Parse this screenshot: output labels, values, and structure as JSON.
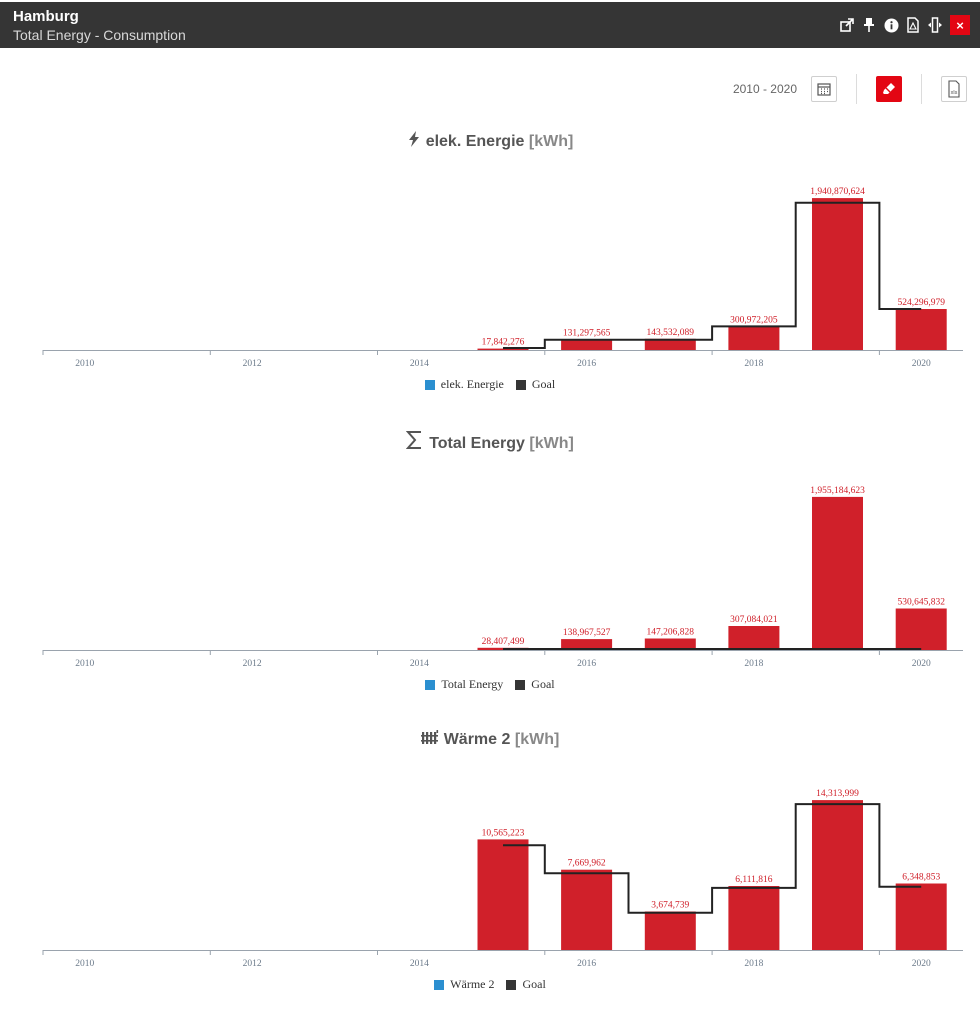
{
  "window": {
    "title": "Hamburg",
    "subtitle": "Total Energy - Consumption"
  },
  "header_icons": [
    "share-icon",
    "pin-icon",
    "info-icon",
    "pdf-icon",
    "resize-icon"
  ],
  "close_label": "×",
  "toolbar": {
    "date_range": "2010 - 2020",
    "export_label": "xls"
  },
  "colors": {
    "bar": "#d0202a",
    "goal": "#222222",
    "series_legend": "#2b8fd0",
    "titlebar": "#353535",
    "accent": "#e30613"
  },
  "charts": [
    {
      "id": "elek",
      "icon": "lightning-icon",
      "title": "elek. Energie",
      "unit": "[kWh]",
      "legend": [
        "elek. Energie",
        "Goal"
      ],
      "chart_data": {
        "type": "bar",
        "categories": [
          "2010",
          "2011",
          "2012",
          "2013",
          "2014",
          "2015",
          "2016",
          "2017",
          "2018",
          "2019",
          "2020"
        ],
        "x_tick_labels": [
          "2010",
          "2012",
          "2014",
          "2016",
          "2018",
          "2020"
        ],
        "series": [
          {
            "name": "elek. Energie",
            "values": [
              0,
              0,
              0,
              0,
              0,
              17842276,
              131297565,
              143532089,
              300972205,
              1940870624,
              524296979
            ]
          },
          {
            "name": "Goal",
            "type": "step",
            "values": [
              null,
              null,
              null,
              null,
              null,
              25000000,
              131297565,
              131297565,
              300972205,
              1880000000,
              524296979
            ]
          }
        ],
        "labels": [
          "",
          "",
          "",
          "",
          "",
          "17,842,276",
          "131,297,565",
          "143,532,089",
          "300,972,205",
          "1,940,870,624",
          "524,296,979"
        ],
        "ylim": [
          0,
          1980000000
        ]
      }
    },
    {
      "id": "total",
      "icon": "sigma-icon",
      "title": "Total Energy",
      "unit": "[kWh]",
      "legend": [
        "Total Energy",
        "Goal"
      ],
      "chart_data": {
        "type": "bar",
        "categories": [
          "2010",
          "2011",
          "2012",
          "2013",
          "2014",
          "2015",
          "2016",
          "2017",
          "2018",
          "2019",
          "2020"
        ],
        "x_tick_labels": [
          "2010",
          "2012",
          "2014",
          "2016",
          "2018",
          "2020"
        ],
        "series": [
          {
            "name": "Total Energy",
            "values": [
              0,
              0,
              0,
              0,
              0,
              28407499,
              138967527,
              147206828,
              307084021,
              1955184623,
              530645832
            ]
          },
          {
            "name": "Goal",
            "type": "step",
            "values": [
              null,
              null,
              null,
              null,
              null,
              0,
              0,
              0,
              0,
              13000000,
              0
            ]
          }
        ],
        "labels": [
          "",
          "",
          "",
          "",
          "",
          "28,407,499",
          "138,967,527",
          "147,206,828",
          "307,084,021",
          "1,955,184,623",
          "530,645,832"
        ],
        "ylim": [
          0,
          1980000000
        ]
      }
    },
    {
      "id": "waerme",
      "icon": "radiator-icon",
      "title": "Wärme 2",
      "unit": "[kWh]",
      "legend": [
        "Wärme 2",
        "Goal"
      ],
      "chart_data": {
        "type": "bar",
        "categories": [
          "2010",
          "2011",
          "2012",
          "2013",
          "2014",
          "2015",
          "2016",
          "2017",
          "2018",
          "2019",
          "2020"
        ],
        "x_tick_labels": [
          "2010",
          "2012",
          "2014",
          "2016",
          "2018",
          "2020"
        ],
        "series": [
          {
            "name": "Wärme 2",
            "values": [
              0,
              0,
              0,
              0,
              0,
              10565223,
              7669962,
              3674739,
              6111816,
              14313999,
              6348853
            ]
          },
          {
            "name": "Goal",
            "type": "step",
            "values": [
              null,
              null,
              null,
              null,
              null,
              10000000,
              7330000,
              3550000,
              5930000,
              13930000,
              6040000
            ]
          }
        ],
        "labels": [
          "",
          "",
          "",
          "",
          "",
          "10,565,223",
          "7,669,962",
          "3,674,739",
          "6,111,816",
          "14,313,999",
          "6,348,853"
        ],
        "ylim": [
          0,
          14800000
        ]
      }
    }
  ]
}
